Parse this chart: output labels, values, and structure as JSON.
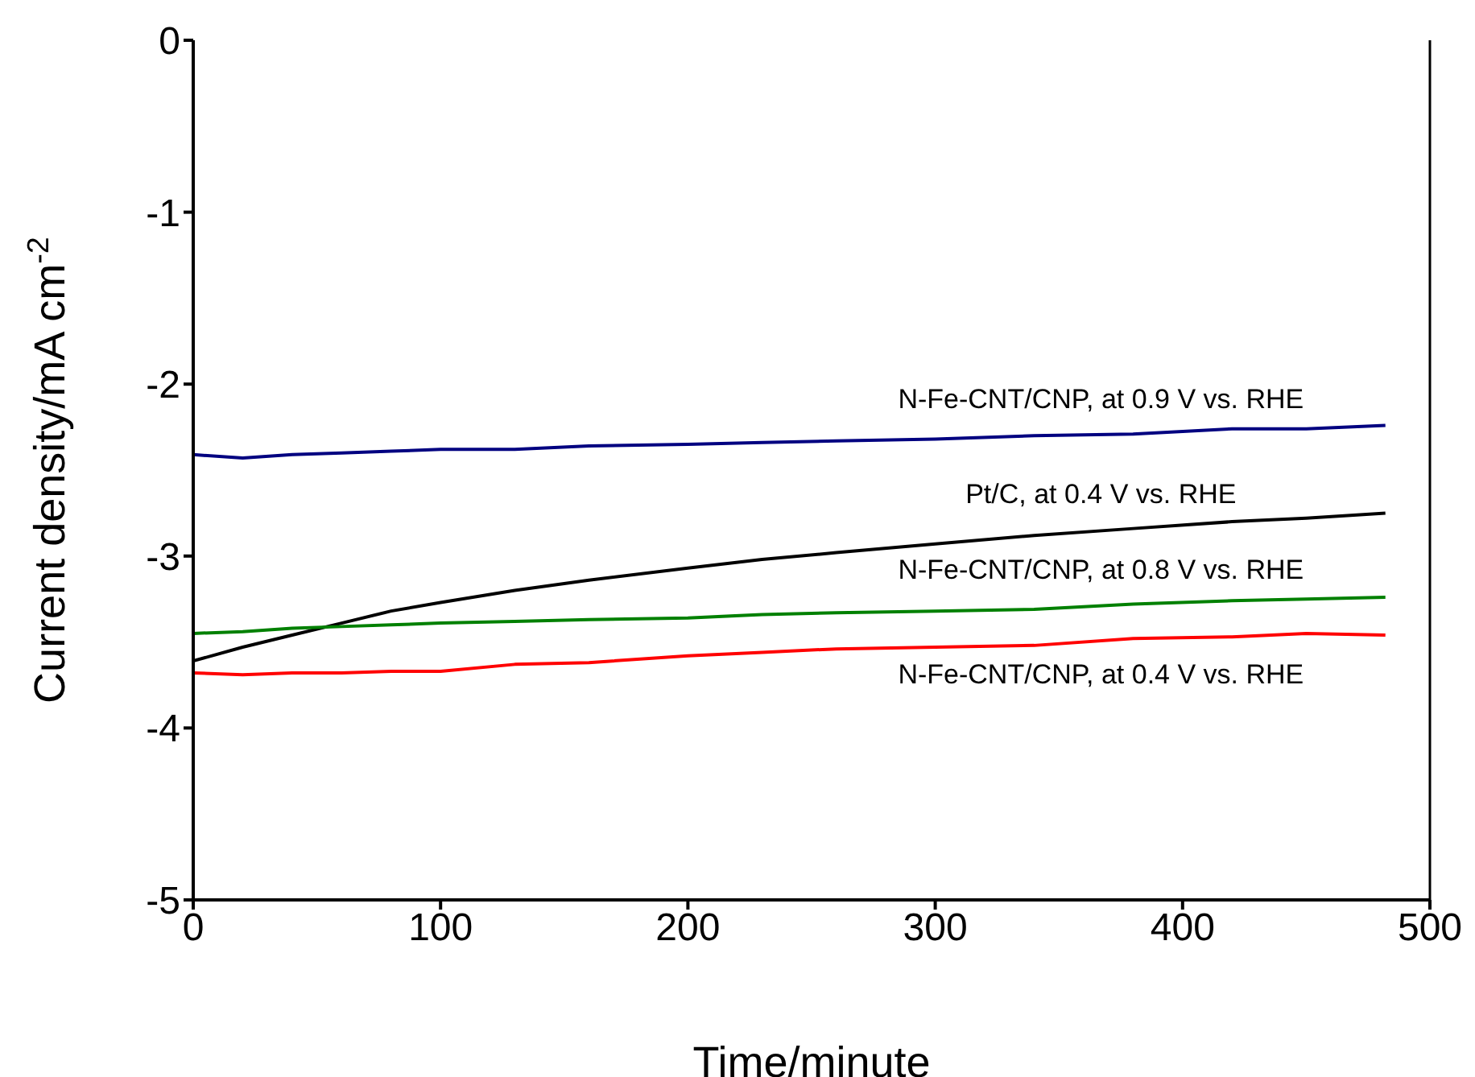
{
  "chart_data": {
    "type": "line",
    "xlabel": "Time/minute",
    "ylabel": "Current density/mA cm$^{-2}$",
    "xlim": [
      0,
      500
    ],
    "ylim": [
      -5,
      0
    ],
    "xticks": [
      0,
      100,
      200,
      300,
      400,
      500
    ],
    "yticks": [
      0,
      -1,
      -2,
      -3,
      -4,
      -5
    ],
    "grid": false,
    "legend": false,
    "marker": "none",
    "line_style": "solid",
    "x": [
      0,
      20,
      40,
      60,
      80,
      100,
      130,
      160,
      200,
      230,
      260,
      300,
      340,
      380,
      420,
      450,
      482
    ],
    "series": [
      {
        "name": "N-Fe-CNT/CNP, at 0.9 V vs. RHE",
        "color": "#000080",
        "values": [
          -2.41,
          -2.43,
          -2.41,
          -2.4,
          -2.39,
          -2.38,
          -2.38,
          -2.36,
          -2.35,
          -2.34,
          -2.33,
          -2.32,
          -2.3,
          -2.29,
          -2.26,
          -2.26,
          -2.24
        ]
      },
      {
        "name": "Pt/C, at 0.4 V vs. RHE",
        "color": "#000000",
        "values": [
          -3.61,
          -3.53,
          -3.46,
          -3.39,
          -3.32,
          -3.27,
          -3.2,
          -3.14,
          -3.07,
          -3.02,
          -2.98,
          -2.93,
          -2.88,
          -2.84,
          -2.8,
          -2.78,
          -2.75
        ]
      },
      {
        "name": "N-Fe-CNT/CNP, at 0.8 V vs. RHE",
        "color": "#008000",
        "values": [
          -3.45,
          -3.44,
          -3.42,
          -3.41,
          -3.4,
          -3.39,
          -3.38,
          -3.37,
          -3.36,
          -3.34,
          -3.33,
          -3.32,
          -3.31,
          -3.28,
          -3.26,
          -3.25,
          -3.24
        ]
      },
      {
        "name": "N-Fe-CNT/CNP, at 0.4 V vs. RHE",
        "color": "#ff0000",
        "values": [
          -3.68,
          -3.69,
          -3.68,
          -3.68,
          -3.67,
          -3.67,
          -3.63,
          -3.62,
          -3.58,
          -3.56,
          -3.54,
          -3.53,
          -3.52,
          -3.48,
          -3.47,
          -3.45,
          -3.46
        ]
      }
    ]
  }
}
